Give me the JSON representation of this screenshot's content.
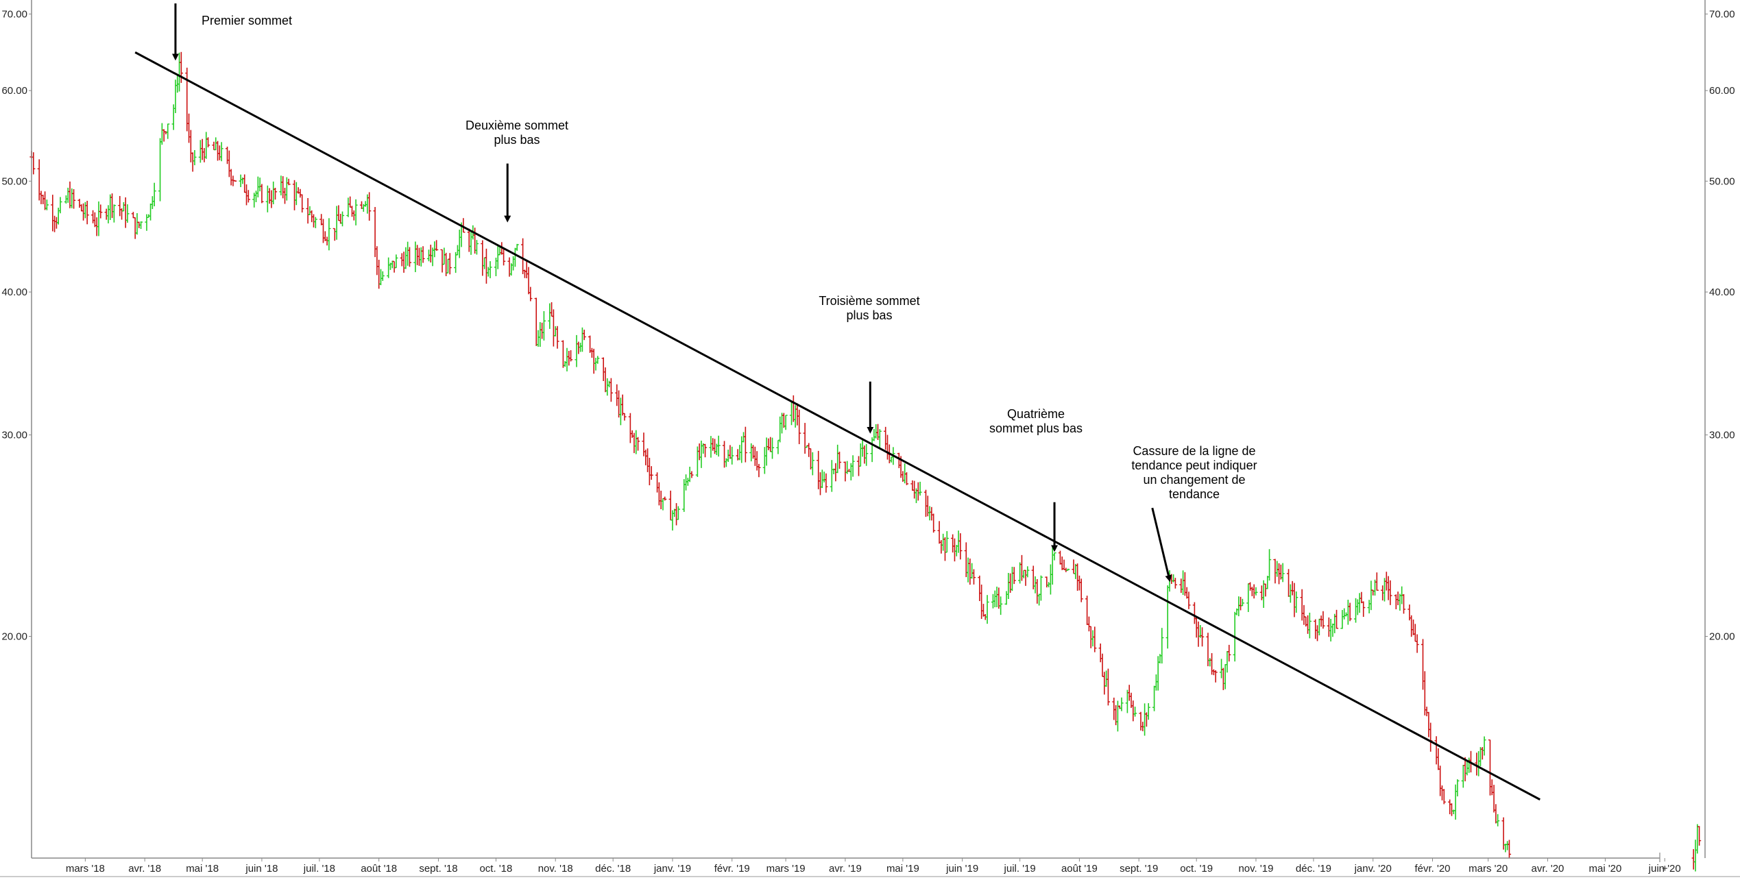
{
  "chart_data": {
    "type": "ohlc",
    "title": "",
    "xlabel": "",
    "ylabel": "",
    "y_scale": "log",
    "ylim": [
      12.8,
      72
    ],
    "xlim": [
      "2018-02-01",
      "2020-06-22"
    ],
    "grid": false,
    "colors": {
      "up": "#22cc22",
      "down": "#cc1111",
      "trendline": "#000000",
      "axis": "#888888"
    },
    "y_ticks": [
      {
        "value": 20,
        "label": "20.00"
      },
      {
        "value": 30,
        "label": "30.00"
      },
      {
        "value": 40,
        "label": "40.00"
      },
      {
        "value": 50,
        "label": "50.00"
      },
      {
        "value": 60,
        "label": "60.00"
      },
      {
        "value": 70,
        "label": "70.00"
      }
    ],
    "x_ticks": [
      {
        "date": "2018-03-01",
        "label": "mars '18"
      },
      {
        "date": "2018-04-01",
        "label": "avr. '18"
      },
      {
        "date": "2018-05-01",
        "label": "mai '18"
      },
      {
        "date": "2018-06-01",
        "label": "juin '18"
      },
      {
        "date": "2018-07-01",
        "label": "juil. '18"
      },
      {
        "date": "2018-08-01",
        "label": "août '18"
      },
      {
        "date": "2018-09-01",
        "label": "sept. '18"
      },
      {
        "date": "2018-10-01",
        "label": "oct. '18"
      },
      {
        "date": "2018-11-01",
        "label": "nov. '18"
      },
      {
        "date": "2018-12-01",
        "label": "déc. '18"
      },
      {
        "date": "2019-01-01",
        "label": "janv. '19"
      },
      {
        "date": "2019-02-01",
        "label": "févr. '19"
      },
      {
        "date": "2019-03-01",
        "label": "mars '19"
      },
      {
        "date": "2019-04-01",
        "label": "avr. '19"
      },
      {
        "date": "2019-05-01",
        "label": "mai '19"
      },
      {
        "date": "2019-06-01",
        "label": "juin '19"
      },
      {
        "date": "2019-07-01",
        "label": "juil. '19"
      },
      {
        "date": "2019-08-01",
        "label": "août '19"
      },
      {
        "date": "2019-09-01",
        "label": "sept. '19"
      },
      {
        "date": "2019-10-01",
        "label": "oct. '19"
      },
      {
        "date": "2019-11-01",
        "label": "nov. '19"
      },
      {
        "date": "2019-12-01",
        "label": "déc. '19"
      },
      {
        "date": "2020-01-01",
        "label": "janv. '20"
      },
      {
        "date": "2020-02-01",
        "label": "févr. '20"
      },
      {
        "date": "2020-03-01",
        "label": "mars '20"
      },
      {
        "date": "2020-04-01",
        "label": "avr. '20"
      },
      {
        "date": "2020-05-01",
        "label": "mai '20"
      },
      {
        "date": "2020-06-01",
        "label": "juin '20"
      }
    ],
    "price_path": [
      [
        "2018-02-01",
        52.5
      ],
      [
        "2018-02-07",
        48
      ],
      [
        "2018-02-14",
        46.5
      ],
      [
        "2018-02-20",
        48.5
      ],
      [
        "2018-02-28",
        47
      ],
      [
        "2018-03-07",
        46
      ],
      [
        "2018-03-14",
        48
      ],
      [
        "2018-03-21",
        47
      ],
      [
        "2018-03-28",
        45.5
      ],
      [
        "2018-04-04",
        47.5
      ],
      [
        "2018-04-10",
        55
      ],
      [
        "2018-04-16",
        58
      ],
      [
        "2018-04-19",
        63.5
      ],
      [
        "2018-04-21",
        61
      ],
      [
        "2018-04-25",
        52
      ],
      [
        "2018-05-03",
        53.5
      ],
      [
        "2018-05-10",
        53
      ],
      [
        "2018-05-17",
        50.5
      ],
      [
        "2018-05-25",
        49
      ],
      [
        "2018-06-05",
        48.5
      ],
      [
        "2018-06-15",
        49.5
      ],
      [
        "2018-06-25",
        47
      ],
      [
        "2018-07-05",
        45
      ],
      [
        "2018-07-16",
        47
      ],
      [
        "2018-07-26",
        48.5
      ],
      [
        "2018-08-01",
        41
      ],
      [
        "2018-08-10",
        42.5
      ],
      [
        "2018-08-20",
        43
      ],
      [
        "2018-08-30",
        44
      ],
      [
        "2018-09-06",
        42
      ],
      [
        "2018-09-13",
        45
      ],
      [
        "2018-09-20",
        44
      ],
      [
        "2018-09-27",
        41.5
      ],
      [
        "2018-10-03",
        43
      ],
      [
        "2018-10-08",
        42
      ],
      [
        "2018-10-12",
        44.5
      ],
      [
        "2018-10-17",
        41
      ],
      [
        "2018-10-22",
        36
      ],
      [
        "2018-10-29",
        38.5
      ],
      [
        "2018-11-05",
        34
      ],
      [
        "2018-11-12",
        36.5
      ],
      [
        "2018-11-19",
        36
      ],
      [
        "2018-11-26",
        33.5
      ],
      [
        "2018-12-03",
        32
      ],
      [
        "2018-12-10",
        30
      ],
      [
        "2018-12-17",
        29
      ],
      [
        "2018-12-27",
        26
      ],
      [
        "2019-01-03",
        25.5
      ],
      [
        "2019-01-10",
        28
      ],
      [
        "2019-01-17",
        29
      ],
      [
        "2019-01-24",
        29.5
      ],
      [
        "2019-01-31",
        28.5
      ],
      [
        "2019-02-07",
        29.5
      ],
      [
        "2019-02-14",
        28.5
      ],
      [
        "2019-02-21",
        29
      ],
      [
        "2019-02-28",
        31
      ],
      [
        "2019-03-04",
        31.8
      ],
      [
        "2019-03-12",
        29
      ],
      [
        "2019-03-20",
        27
      ],
      [
        "2019-03-28",
        28.5
      ],
      [
        "2019-04-04",
        28
      ],
      [
        "2019-04-11",
        29
      ],
      [
        "2019-04-18",
        30
      ],
      [
        "2019-04-23",
        29
      ],
      [
        "2019-04-30",
        28
      ],
      [
        "2019-05-07",
        27
      ],
      [
        "2019-05-15",
        25.5
      ],
      [
        "2019-05-23",
        24
      ],
      [
        "2019-05-30",
        24
      ],
      [
        "2019-06-06",
        22.5
      ],
      [
        "2019-06-13",
        21
      ],
      [
        "2019-06-20",
        21.5
      ],
      [
        "2019-06-27",
        22.5
      ],
      [
        "2019-07-04",
        23
      ],
      [
        "2019-07-10",
        22
      ],
      [
        "2019-07-16",
        22.5
      ],
      [
        "2019-07-19",
        23.5
      ],
      [
        "2019-07-24",
        22.5
      ],
      [
        "2019-07-30",
        23
      ],
      [
        "2019-08-05",
        20.5
      ],
      [
        "2019-08-12",
        19
      ],
      [
        "2019-08-19",
        17
      ],
      [
        "2019-08-26",
        18
      ],
      [
        "2019-09-02",
        16.5
      ],
      [
        "2019-09-09",
        18
      ],
      [
        "2019-09-13",
        20
      ],
      [
        "2019-09-17",
        22.5
      ],
      [
        "2019-09-24",
        22
      ],
      [
        "2019-10-01",
        20.5
      ],
      [
        "2019-10-08",
        19
      ],
      [
        "2019-10-15",
        18.5
      ],
      [
        "2019-10-22",
        21
      ],
      [
        "2019-10-29",
        22
      ],
      [
        "2019-11-05",
        22
      ],
      [
        "2019-11-09",
        23.5
      ],
      [
        "2019-11-14",
        22.5
      ],
      [
        "2019-11-21",
        21.5
      ],
      [
        "2019-11-28",
        20.5
      ],
      [
        "2019-12-05",
        20.5
      ],
      [
        "2019-12-12",
        20.5
      ],
      [
        "2019-12-19",
        21
      ],
      [
        "2019-12-27",
        21.5
      ],
      [
        "2020-01-03",
        22
      ],
      [
        "2020-01-10",
        22
      ],
      [
        "2020-01-15",
        21.5
      ],
      [
        "2020-01-20",
        21
      ],
      [
        "2020-01-25",
        19
      ],
      [
        "2020-01-29",
        17
      ],
      [
        "2020-02-03",
        15.5
      ],
      [
        "2020-02-07",
        14.5
      ],
      [
        "2020-02-11",
        14
      ],
      [
        "2020-02-15",
        15
      ],
      [
        "2020-02-20",
        15.5
      ],
      [
        "2020-02-25",
        15.5
      ],
      [
        "2020-02-28",
        16.5
      ],
      [
        "2020-03-03",
        14.5
      ],
      [
        "2020-03-07",
        13.5
      ],
      [
        "2020-03-12",
        12.8
      ]
    ],
    "price_path_tail": [
      [
        "2020-06-16",
        12.8
      ],
      [
        "2020-06-18",
        13.6
      ],
      [
        "2020-06-21",
        13.1
      ]
    ],
    "trendline": {
      "start": [
        "2018-03-27",
        64.8
      ],
      "end": [
        "2020-03-28",
        14.4
      ]
    },
    "annotations": [
      {
        "lines": [
          "Premier sommet"
        ],
        "arrow_date": "2018-04-17",
        "arrow_from": 71.5,
        "arrow_to": 64.0
      },
      {
        "lines": [
          "Deuxième  sommet",
          "plus bas"
        ],
        "arrow_date": "2018-10-07",
        "arrow_from": 51.8,
        "arrow_to": 46.2
      },
      {
        "lines": [
          "Troisième  sommet",
          "plus bas"
        ],
        "arrow_date": "2019-04-14",
        "arrow_from": 33.4,
        "arrow_to": 30.2
      },
      {
        "lines": [
          "Quatrième",
          "sommet plus bas"
        ],
        "arrow_date": "2019-07-19",
        "arrow_from": 26.2,
        "arrow_to": 23.8
      },
      {
        "lines": [
          "Cassure de la ligne de",
          "tendance peut indiquer",
          "un changement de",
          "tendance"
        ],
        "arrow_date": "2019-09-08",
        "arrow_date_to": "2019-09-17",
        "arrow_from": 25.9,
        "arrow_to": 22.4
      }
    ]
  },
  "axis_extra": {
    "end_marker": "+"
  }
}
